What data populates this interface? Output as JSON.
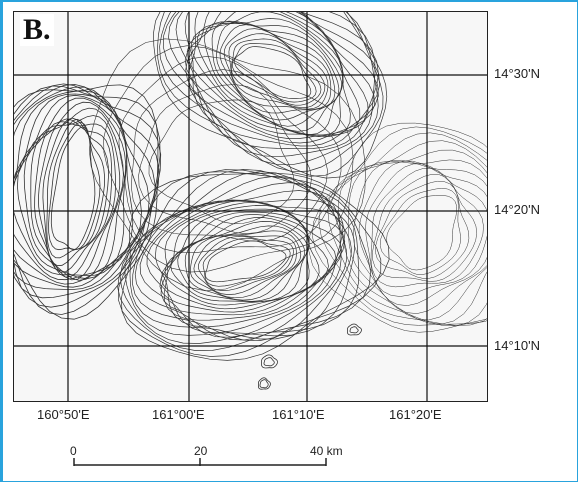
{
  "panel_label": "B.",
  "map": {
    "latitude_labels": [
      "14°30'N",
      "14°20'N",
      "14°10'N"
    ],
    "longitude_labels": [
      "160°50'E",
      "161°00'E",
      "161°10'E",
      "161°20'E"
    ]
  },
  "scale_bar": {
    "labels": [
      "0",
      "20",
      "40 km"
    ]
  },
  "colors": {
    "frame": "#29a3dd",
    "contour": "#333333",
    "grid": "#111111"
  }
}
